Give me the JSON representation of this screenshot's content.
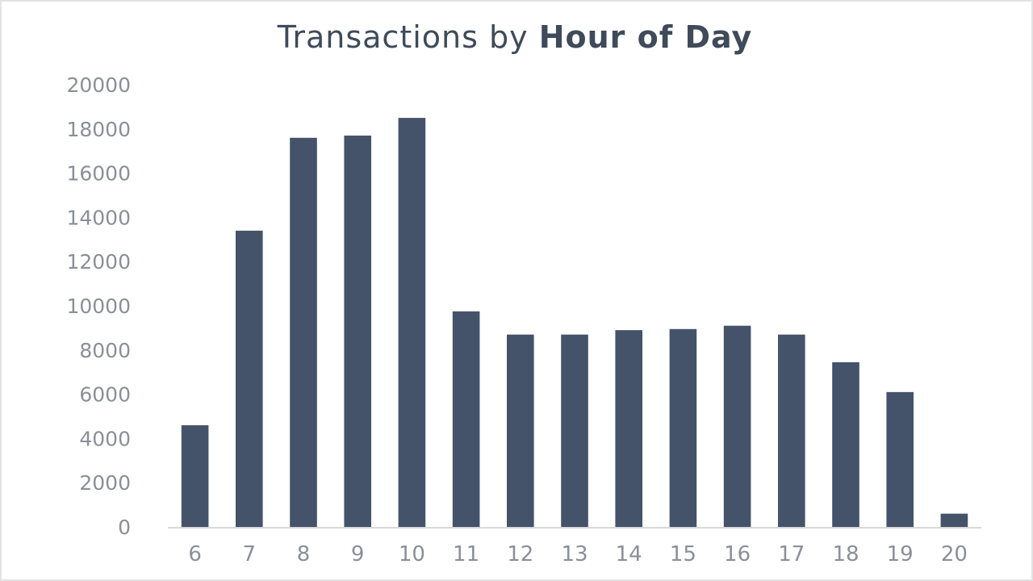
{
  "chart_data": {
    "type": "bar",
    "title_light": "Transactions by",
    "title_bold": "Hour of Day",
    "xlabel": "",
    "ylabel": "",
    "categories": [
      "6",
      "7",
      "8",
      "9",
      "10",
      "11",
      "12",
      "13",
      "14",
      "15",
      "16",
      "17",
      "18",
      "19",
      "20"
    ],
    "values": [
      4600,
      13400,
      17600,
      17700,
      18500,
      9750,
      8700,
      8700,
      8900,
      8950,
      9100,
      8700,
      7450,
      6100,
      600
    ],
    "ylim": [
      0,
      20000
    ],
    "yticks": [
      "0",
      "2000",
      "4000",
      "6000",
      "8000",
      "10000",
      "12000",
      "14000",
      "16000",
      "18000",
      "20000"
    ],
    "grid": false,
    "legend": "none",
    "bar_color": "#44536a"
  }
}
